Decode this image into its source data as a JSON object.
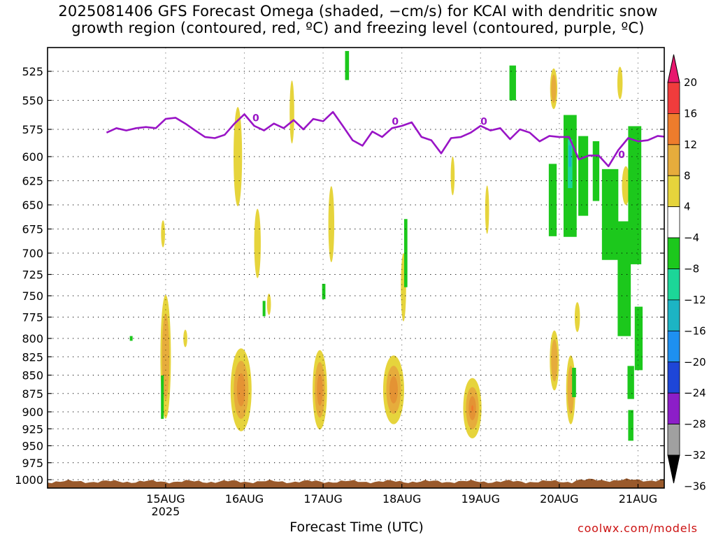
{
  "title_lines": [
    "2025081406 GFS Forecast Omega (shaded, −cm/s) for KCAI with dendritic snow",
    "growth region (contoured, red, ºC) and freezing level (contoured, purple, ºC)"
  ],
  "credit": "coolwx.com/models",
  "chart_data": {
    "type": "heatmap",
    "title": "2025081406 GFS Forecast Omega (shaded, −cm/s) for KCAI with dendritic snow growth region (contoured, red, ºC) and freezing level (contoured, purple, ºC)",
    "xlabel": "Forecast Time (UTC)",
    "ylabel": "",
    "x_unit": "hours from 2025-08-14 06 UTC",
    "xlim": [
      0,
      162
    ],
    "ylim": [
      1010,
      505
    ],
    "x_ticks": [
      {
        "x": 18,
        "label": "15AUG",
        "sub": "2025"
      },
      {
        "x": 42,
        "label": "16AUG"
      },
      {
        "x": 66,
        "label": "17AUG"
      },
      {
        "x": 90,
        "label": "18AUG"
      },
      {
        "x": 114,
        "label": "19AUG"
      },
      {
        "x": 138,
        "label": "20AUG"
      },
      {
        "x": 162,
        "label": "21AUG"
      }
    ],
    "y_ticks": [
      525,
      550,
      575,
      600,
      625,
      650,
      675,
      700,
      725,
      750,
      775,
      800,
      825,
      850,
      875,
      900,
      925,
      950,
      975,
      1000
    ],
    "grid": true,
    "colorbar": {
      "labels": [
        "20",
        "16",
        "12",
        "8",
        "4",
        "−4",
        "−8",
        "−12",
        "−16",
        "−20",
        "−24",
        "−28",
        "−32",
        "−36"
      ],
      "colors": [
        "#e8176e",
        "#f03c3c",
        "#ee7c2c",
        "#e6ac3c",
        "#e6d43c",
        "#ffffff",
        "#1cc81c",
        "#1cd698",
        "#1cb4c4",
        "#1e90f0",
        "#1e46d8",
        "#8c1ec8",
        "#a0a0a0",
        "#000000"
      ]
    },
    "omega_blobs": [
      {
        "t": 18,
        "p": 825,
        "dt": 1.6,
        "dp": 160,
        "level": 2
      },
      {
        "t": 17.2,
        "p": 680,
        "dt": 0.6,
        "dp": 28,
        "level": 1
      },
      {
        "t": 24,
        "p": 800,
        "dt": 0.6,
        "dp": 22,
        "level": 1
      },
      {
        "t": 41,
        "p": 870,
        "dt": 3.2,
        "dp": 115,
        "level": 3
      },
      {
        "t": 40,
        "p": 600,
        "dt": 1.3,
        "dp": 95,
        "level": 1
      },
      {
        "t": 46,
        "p": 690,
        "dt": 1,
        "dp": 75,
        "level": 1
      },
      {
        "t": 49.5,
        "p": 760,
        "dt": 0.6,
        "dp": 25,
        "level": 1
      },
      {
        "t": 56.5,
        "p": 560,
        "dt": 0.7,
        "dp": 55,
        "level": 1
      },
      {
        "t": 65,
        "p": 870,
        "dt": 2.2,
        "dp": 110,
        "level": 3
      },
      {
        "t": 68.5,
        "p": 670,
        "dt": 0.9,
        "dp": 80,
        "level": 1
      },
      {
        "t": 87.5,
        "p": 870,
        "dt": 3.2,
        "dp": 95,
        "level": 3
      },
      {
        "t": 90.5,
        "p": 740,
        "dt": 0.8,
        "dp": 80,
        "level": 1
      },
      {
        "t": 111.5,
        "p": 895,
        "dt": 2.8,
        "dp": 85,
        "level": 4
      },
      {
        "t": 105.5,
        "p": 620,
        "dt": 0.6,
        "dp": 40,
        "level": 1
      },
      {
        "t": 116,
        "p": 655,
        "dt": 0.6,
        "dp": 50,
        "level": 1
      },
      {
        "t": 136.5,
        "p": 830,
        "dt": 1.4,
        "dp": 80,
        "level": 2
      },
      {
        "t": 136.3,
        "p": 540,
        "dt": 1.1,
        "dp": 35,
        "level": 2
      },
      {
        "t": 141.5,
        "p": 870,
        "dt": 1.4,
        "dp": 95,
        "level": 2
      },
      {
        "t": 143.5,
        "p": 775,
        "dt": 0.8,
        "dp": 35,
        "level": 1
      },
      {
        "t": 156.5,
        "p": 535,
        "dt": 0.8,
        "dp": 28,
        "level": 1
      },
      {
        "t": 158.3,
        "p": 630,
        "dt": 1.2,
        "dp": 40,
        "level": 1
      }
    ],
    "omega_neg_blobs": [
      {
        "t": 17,
        "p": 880,
        "dt": 0.3,
        "dp": 60,
        "level": 1
      },
      {
        "t": 7.5,
        "p": 800,
        "dt": 0.3,
        "dp": 6,
        "level": 1
      },
      {
        "t": 48,
        "p": 765,
        "dt": 0.3,
        "dp": 18,
        "level": 1
      },
      {
        "t": 66.2,
        "p": 745,
        "dt": 0.5,
        "dp": 18,
        "level": 1
      },
      {
        "t": 73.3,
        "p": 520,
        "dt": 0.6,
        "dp": 25,
        "level": 1
      },
      {
        "t": 91.2,
        "p": 700,
        "dt": 0.5,
        "dp": 75,
        "level": 1
      },
      {
        "t": 123.8,
        "p": 535,
        "dt": 1,
        "dp": 30,
        "level": 1
      },
      {
        "t": 142.5,
        "p": 860,
        "dt": 0.6,
        "dp": 40,
        "level": 1
      },
      {
        "t": 136,
        "p": 645,
        "dt": 1.2,
        "dp": 75,
        "level": 1
      },
      {
        "t": 141.3,
        "p": 620,
        "dt": 2,
        "dp": 120,
        "level": 2
      },
      {
        "t": 145.3,
        "p": 620,
        "dt": 1.5,
        "dp": 80,
        "level": 1
      },
      {
        "t": 149.2,
        "p": 615,
        "dt": 1,
        "dp": 60,
        "level": 1
      },
      {
        "t": 153.5,
        "p": 660,
        "dt": 2.5,
        "dp": 95,
        "level": 1
      },
      {
        "t": 157.8,
        "p": 730,
        "dt": 2,
        "dp": 130,
        "level": 1
      },
      {
        "t": 161,
        "p": 640,
        "dt": 2,
        "dp": 140,
        "level": 1
      },
      {
        "t": 162.2,
        "p": 800,
        "dt": 1.2,
        "dp": 80,
        "level": 1
      },
      {
        "t": 159.8,
        "p": 860,
        "dt": 1,
        "dp": 45,
        "level": 1
      },
      {
        "t": 159.8,
        "p": 920,
        "dt": 0.8,
        "dp": 45,
        "level": 1
      }
    ],
    "freezing_level": {
      "label": "0",
      "label_points": [
        [
          45.5,
          565
        ],
        [
          88,
          568
        ],
        [
          115,
          568
        ],
        [
          157,
          598
        ]
      ],
      "t": [
        0,
        3,
        6,
        9,
        12,
        15,
        18,
        21,
        24,
        27,
        30,
        33,
        36,
        39,
        42,
        45,
        48,
        51,
        54,
        57,
        60,
        63,
        66,
        69,
        72,
        75,
        78,
        81,
        84,
        87,
        90,
        93,
        96,
        99,
        102,
        105,
        108,
        111,
        114,
        117,
        120,
        123,
        126,
        129,
        132,
        135,
        138,
        141,
        144,
        147,
        150,
        153,
        156,
        159,
        162,
        165,
        168,
        171,
        174,
        177,
        180
      ],
      "p": [
        578,
        574,
        576,
        574,
        573,
        574,
        566,
        565,
        570,
        576,
        582,
        583,
        580,
        570,
        562,
        572,
        576,
        570,
        574,
        567,
        575,
        566,
        568,
        560,
        572,
        585,
        590,
        577,
        582,
        574,
        572,
        569,
        582,
        585,
        597,
        583,
        582,
        578,
        572,
        576,
        574,
        584,
        575,
        578,
        586,
        581,
        582,
        582,
        603,
        599,
        599,
        610,
        594,
        583,
        586,
        585,
        581,
        582,
        577,
        579,
        579
      ]
    },
    "surface_p": 1003
  }
}
